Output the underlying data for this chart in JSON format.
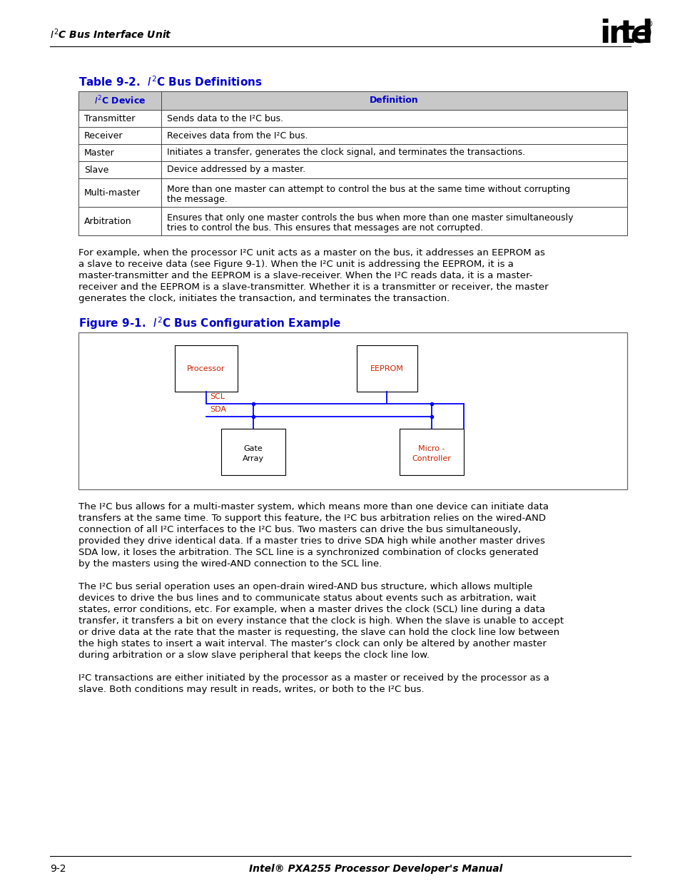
{
  "bg_color": "#ffffff",
  "text_color": "#000000",
  "blue_color": "#0000cc",
  "red_color": "#cc2200",
  "link_color": "#0000cc",
  "table_border": "#444444",
  "header_bg": "#cccccc",
  "header_left": "I²C Bus Interface Unit",
  "table_title": "Table 9-2.  I²C Bus Definitions",
  "table_col1_header": "I²C Device",
  "table_col2_header": "Definition",
  "table_rows": [
    {
      "device": "Transmitter",
      "definition": "Sends data to the I²C bus.",
      "lines": 1
    },
    {
      "device": "Receiver",
      "definition": "Receives data from the I²C bus.",
      "lines": 1
    },
    {
      "device": "Master",
      "definition": "Initiates a transfer, generates the clock signal, and terminates the transactions.",
      "lines": 1
    },
    {
      "device": "Slave",
      "definition": "Device addressed by a master.",
      "lines": 1
    },
    {
      "device": "Multi-master",
      "definition": "More than one master can attempt to control the bus at the same time without corrupting\nthe message.",
      "lines": 2
    },
    {
      "device": "Arbitration",
      "definition": "Ensures that only one master controls the bus when more than one master simultaneously\ntries to control the bus. This ensures that messages are not corrupted.",
      "lines": 2
    }
  ],
  "para1": [
    "For example, when the processor I²C unit acts as a master on the bus, it addresses an EEPROM as",
    "a slave to receive data (see Figure 9-1). When the I²C unit is addressing the EEPROM, it is a",
    "master-transmitter and the EEPROM is a slave-receiver. When the I²C reads data, it is a master-",
    "receiver and the EEPROM is a slave-transmitter. Whether it is a transmitter or receiver, the master",
    "generates the clock, initiates the transaction, and terminates the transaction."
  ],
  "fig_title": "Figure 9-1.  I²C Bus Configuration Example",
  "para2": [
    "The I²C bus allows for a multi-master system, which means more than one device can initiate data",
    "transfers at the same time. To support this feature, the I²C bus arbitration relies on the wired-AND",
    "connection of all I²C interfaces to the I²C bus. Two masters can drive the bus simultaneously,",
    "provided they drive identical data. If a master tries to drive SDA high while another master drives",
    "SDA low, it loses the arbitration. The SCL line is a synchronized combination of clocks generated",
    "by the masters using the wired-AND connection to the SCL line."
  ],
  "para3": [
    "The I²C bus serial operation uses an open-drain wired-AND bus structure, which allows multiple",
    "devices to drive the bus lines and to communicate status about events such as arbitration, wait",
    "states, error conditions, etc. For example, when a master drives the clock (SCL) line during a data",
    "transfer, it transfers a bit on every instance that the clock is high. When the slave is unable to accept",
    "or drive data at the rate that the master is requesting, the slave can hold the clock line low between",
    "the high states to insert a wait interval. The master’s clock can only be altered by another master",
    "during arbitration or a slow slave peripheral that keeps the clock line low."
  ],
  "para4": [
    "I²C transactions are either initiated by the processor as a master or received by the processor as a",
    "slave. Both conditions may result in reads, writes, or both to the I²C bus."
  ],
  "footer_left": "9-2",
  "footer_right": "Intel® PXA255 Processor Developer’s Manual"
}
